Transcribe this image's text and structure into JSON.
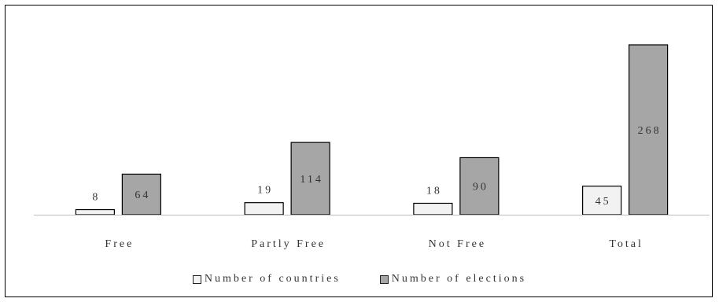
{
  "chart_data": {
    "type": "bar",
    "categories": [
      "Free",
      "Partly Free",
      "Not Free",
      "Total"
    ],
    "series": [
      {
        "name": "Number of countries",
        "values": [
          8,
          19,
          18,
          45
        ],
        "color": "#f2f2f2"
      },
      {
        "name": "Number of elections",
        "values": [
          64,
          114,
          90,
          268
        ],
        "color": "#a6a6a6"
      }
    ],
    "ylim": [
      0,
      280
    ],
    "grid": false,
    "legend_position": "bottom"
  }
}
